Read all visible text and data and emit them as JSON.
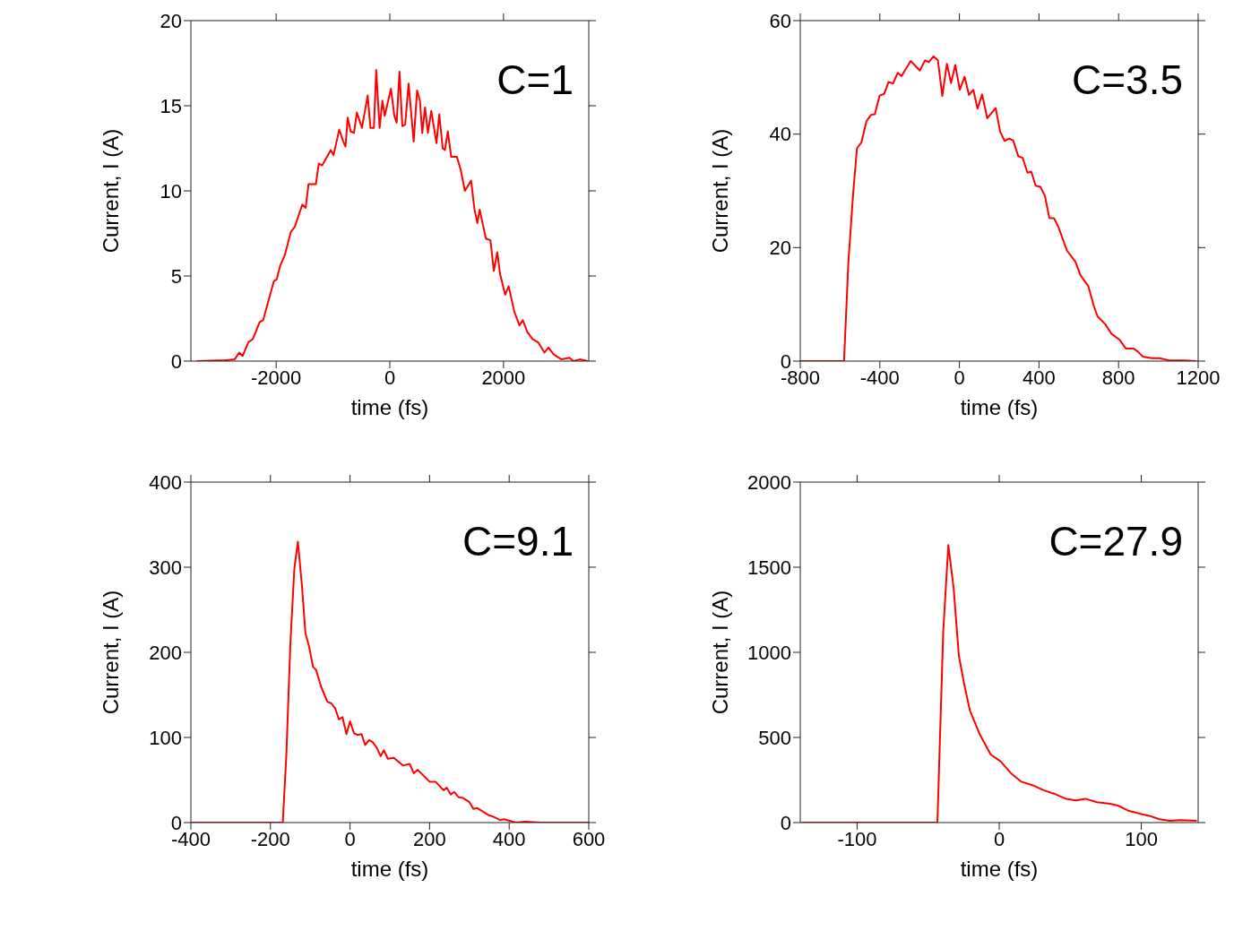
{
  "chart_data": [
    {
      "type": "line",
      "annotations": [
        "C=1"
      ],
      "xlabel": "time (fs)",
      "ylabel": "Current, I (A)",
      "color": "#ff0000",
      "xlim": [
        -3500,
        3500
      ],
      "xticks": [
        -2000,
        0,
        2000
      ],
      "ylim": [
        0,
        20
      ],
      "yticks": [
        0,
        5,
        10,
        15,
        20
      ],
      "x": [
        -3400,
        -2890,
        -2730,
        -2650,
        -2590,
        -2490,
        -2410,
        -2290,
        -2230,
        -2040,
        -1990,
        -1930,
        -1850,
        -1740,
        -1670,
        -1540,
        -1480,
        -1430,
        -1300,
        -1250,
        -1190,
        -1040,
        -990,
        -890,
        -820,
        -780,
        -740,
        -690,
        -630,
        -580,
        -490,
        -390,
        -340,
        -280,
        -240,
        -180,
        -130,
        -90,
        20,
        80,
        120,
        170,
        220,
        270,
        330,
        420,
        480,
        530,
        570,
        620,
        670,
        730,
        820,
        870,
        930,
        970,
        1020,
        1080,
        1180,
        1250,
        1320,
        1430,
        1490,
        1540,
        1580,
        1690,
        1770,
        1830,
        1890,
        1940,
        2030,
        2090,
        2190,
        2280,
        2340,
        2420,
        2510,
        2610,
        2720,
        2790,
        2880,
        3020,
        3160,
        3230,
        3340,
        3480
      ],
      "values": [
        0,
        0.05,
        0.1,
        0.5,
        0.3,
        1.1,
        1.3,
        2.3,
        2.4,
        4.7,
        4.8,
        5.6,
        6.2,
        7.6,
        7.9,
        9.2,
        9.0,
        10.4,
        10.4,
        11.6,
        11.5,
        12.4,
        12.1,
        13.6,
        12.9,
        12.6,
        14.3,
        13.5,
        13.4,
        14.6,
        13.7,
        15.6,
        13.7,
        13.7,
        17.1,
        13.7,
        15.3,
        14.4,
        16.0,
        14.4,
        14.0,
        17.0,
        13.8,
        13.9,
        16.3,
        12.9,
        15.9,
        15.3,
        13.4,
        14.9,
        13.4,
        14.7,
        12.8,
        14.5,
        12.5,
        12.4,
        13.5,
        12.0,
        12.0,
        11.2,
        10.0,
        10.6,
        8.9,
        8.1,
        8.9,
        7.2,
        7.1,
        5.3,
        6.4,
        5.1,
        3.9,
        4.4,
        2.9,
        2.1,
        2.4,
        1.7,
        1.3,
        1.1,
        0.5,
        0.8,
        0.4,
        0.1,
        0.2,
        0,
        0.1,
        0
      ]
    },
    {
      "type": "line",
      "annotations": [
        "C=3.5"
      ],
      "xlabel": "time (fs)",
      "ylabel": "Current, I (A)",
      "color": "#ff0000",
      "xlim": [
        -800,
        1200
      ],
      "xticks": [
        -800,
        -400,
        0,
        400,
        800,
        1200
      ],
      "ylim": [
        0,
        60
      ],
      "yticks": [
        0,
        20,
        40,
        60
      ],
      "x": [
        -800,
        -580,
        -558,
        -534,
        -515,
        -493,
        -467,
        -444,
        -425,
        -401,
        -378,
        -356,
        -334,
        -310,
        -291,
        -245,
        -199,
        -173,
        -154,
        -130,
        -108,
        -86,
        -63,
        -42,
        -21,
        2,
        26,
        48,
        70,
        91,
        114,
        140,
        182,
        205,
        227,
        250,
        270,
        296,
        318,
        342,
        361,
        383,
        407,
        430,
        452,
        475,
        498,
        540,
        583,
        609,
        648,
        674,
        694,
        733,
        765,
        804,
        837,
        876,
        896,
        922,
        967,
        1006,
        1059,
        1124,
        1190
      ],
      "values": [
        0,
        0,
        17.5,
        29.6,
        37.5,
        38.5,
        42.3,
        43.4,
        43.5,
        46.8,
        47.1,
        49.2,
        48.9,
        50.8,
        50.2,
        52.9,
        51.2,
        53.0,
        52.7,
        53.7,
        53.0,
        46.7,
        52.4,
        49.0,
        52.2,
        47.8,
        50.1,
        46.9,
        47.8,
        44.5,
        47.0,
        42.8,
        44.6,
        40.4,
        38.8,
        39.2,
        38.9,
        36.1,
        35.8,
        33.2,
        33.4,
        30.9,
        30.7,
        29.1,
        25.2,
        25.2,
        23.6,
        19.5,
        17.5,
        15.1,
        13.2,
        9.9,
        7.9,
        6.5,
        4.8,
        3.8,
        2.2,
        2.2,
        1.7,
        0.8,
        0.5,
        0.5,
        0.1,
        0.1,
        0
      ]
    },
    {
      "type": "line",
      "annotations": [
        "C=9.1"
      ],
      "xlabel": "time (fs)",
      "ylabel": "Current, I (A)",
      "color": "#ff0000",
      "xlim": [
        -400,
        600
      ],
      "xticks": [
        -400,
        -200,
        0,
        200,
        400,
        600
      ],
      "ylim": [
        0,
        400
      ],
      "yticks": [
        0,
        100,
        200,
        300,
        400
      ],
      "x": [
        -400,
        -169,
        -160,
        -150,
        -140,
        -131,
        -121,
        -112,
        -103,
        -93,
        -85,
        -73,
        -57,
        -47,
        -37,
        -28,
        -19,
        -9,
        0,
        10,
        18,
        29,
        38,
        48,
        58,
        67,
        77,
        85,
        95,
        110,
        133,
        150,
        160,
        170,
        200,
        215,
        235,
        243,
        253,
        262,
        272,
        283,
        300,
        310,
        320,
        347,
        360,
        377,
        387,
        417,
        440,
        480,
        507,
        600
      ],
      "values": [
        0,
        0,
        80,
        210,
        298,
        330,
        279,
        222,
        207,
        183,
        179,
        160,
        142,
        140,
        134,
        121,
        124,
        104,
        119,
        105,
        103,
        104,
        91,
        97,
        94,
        88,
        78,
        85,
        75,
        76,
        67,
        69,
        58,
        62,
        48,
        48,
        38,
        41,
        33,
        36,
        30,
        29,
        24,
        16,
        17,
        9,
        7,
        3,
        4,
        0,
        1,
        0,
        0,
        0
      ]
    },
    {
      "type": "line",
      "annotations": [
        "C=27.9"
      ],
      "xlabel": "time (fs)",
      "ylabel": "Current, I (A)",
      "color": "#ff0000",
      "xlim": [
        -140,
        140
      ],
      "xticks": [
        -100,
        0,
        100
      ],
      "ylim": [
        0,
        2000
      ],
      "yticks": [
        0,
        500,
        1000,
        1500,
        2000
      ],
      "x": [
        -139,
        -43.5,
        -39.4,
        -35.8,
        -32.1,
        -28.4,
        -24.8,
        -20.7,
        -13.8,
        -6,
        0.9,
        8.3,
        15.6,
        23.3,
        31.2,
        38.5,
        46.8,
        54.1,
        60.5,
        68.8,
        78,
        83.5,
        90.8,
        100,
        105.5,
        112.8,
        120.2,
        127.5,
        139
      ],
      "values": [
        0,
        0,
        1120,
        1630,
        1380,
        980,
        820,
        660,
        520,
        400,
        360,
        290,
        240,
        220,
        190,
        170,
        140,
        130,
        140,
        120,
        110,
        100,
        70,
        50,
        40,
        20,
        10,
        15,
        10
      ]
    }
  ]
}
